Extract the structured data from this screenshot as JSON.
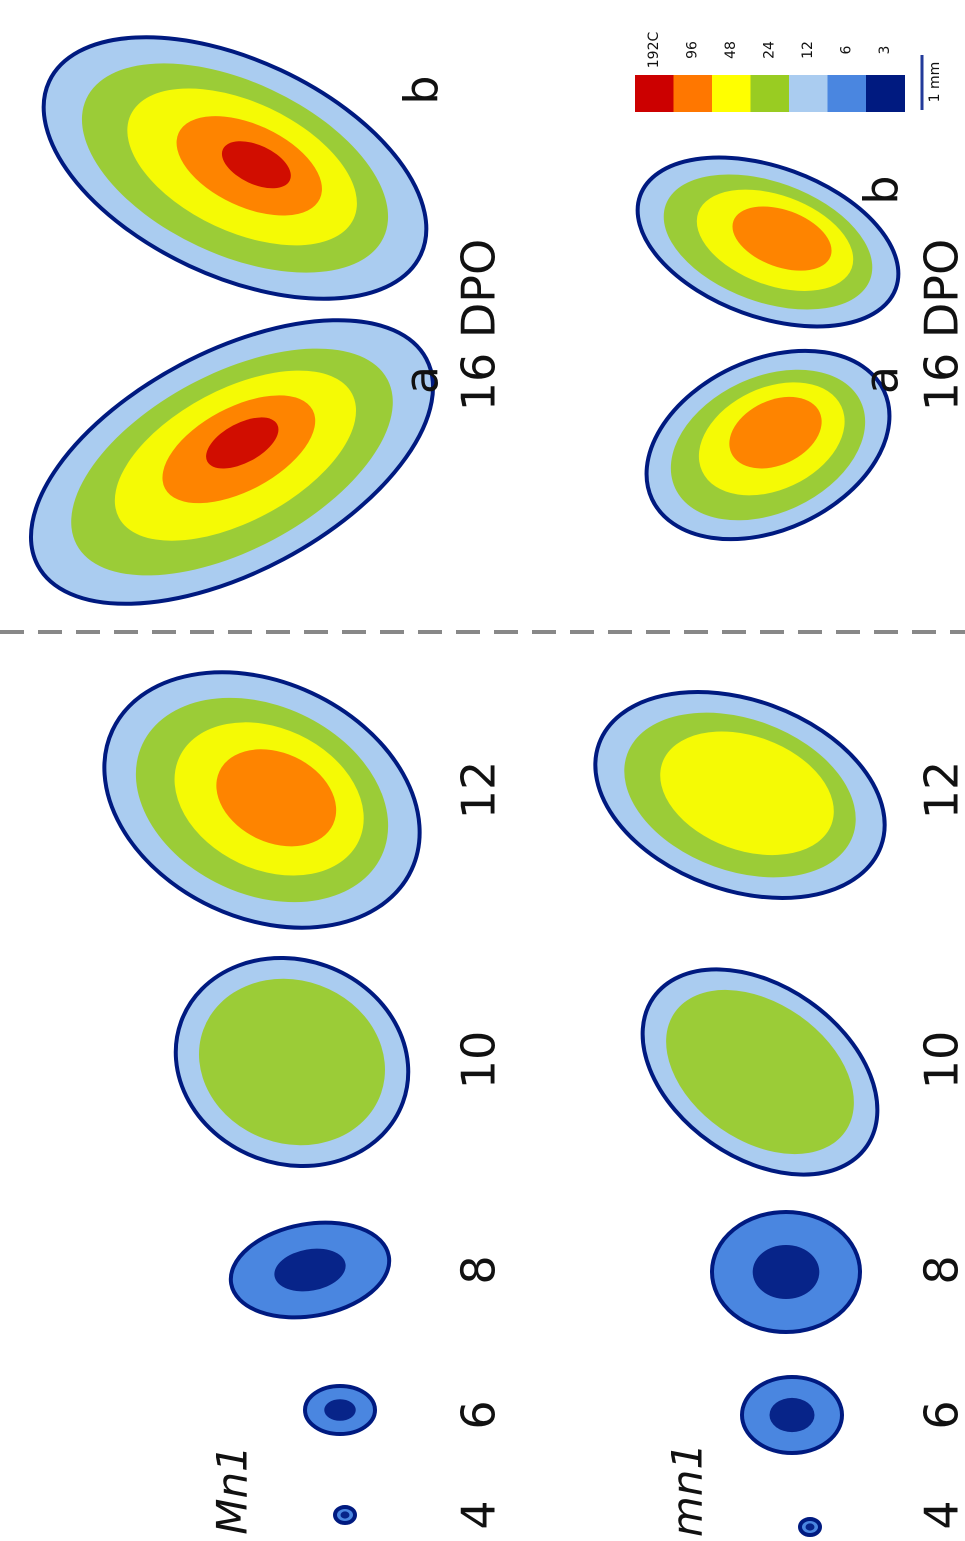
{
  "genotypes": [
    "Mn1",
    "mn1"
  ],
  "timepoints": [
    "4",
    "6",
    "8",
    "10",
    "12",
    "16 DPO"
  ],
  "panels": [
    "a",
    "b"
  ],
  "legend": {
    "labels": [
      "192C",
      "96",
      "48",
      "24",
      "12",
      "6",
      "3"
    ],
    "colors": [
      "#cc0000",
      "#ff7700",
      "#ffff00",
      "#99cc22",
      "#aaccf0",
      "#4a86e0",
      "#001a80"
    ]
  },
  "scale": "1 mm"
}
